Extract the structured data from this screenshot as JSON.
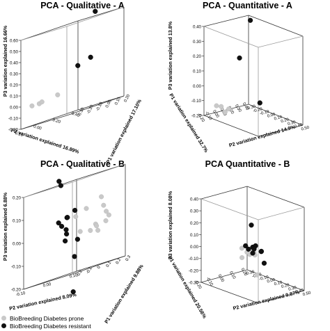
{
  "chart_data": [
    {
      "type": "scatter",
      "title": "PCA - Qualitative - A",
      "xlabel": "P2 variation explained 16.89%",
      "ylabel": "P1 variation explained 17.10%",
      "zlabel": "P3 variation explained 16.66%",
      "xticks": [
        "0.40",
        "0.20",
        "0.00",
        "-0.20"
      ],
      "yticks": [
        "-0.30",
        "-0.20",
        "-0.10",
        "0.00",
        "0.10",
        "0.20"
      ],
      "zticks": [
        "0.60",
        "0.50",
        "0.40",
        "0.30",
        "0.20",
        "0.10",
        "0.00",
        "-0.10",
        "-0.20"
      ],
      "series": [
        {
          "name": "BioBreeding Diabetes prone",
          "points": [
            [
              -0.18,
              -0.2,
              -0.02
            ],
            [
              -0.2,
              -0.1,
              -0.02
            ],
            [
              -0.22,
              -0.05,
              -0.01
            ],
            [
              -0.2,
              0.1,
              0.01
            ]
          ]
        },
        {
          "name": "BioBreeding Diabetes resistant",
          "points": [
            [
              0.05,
              0.25,
              0.65
            ],
            [
              0.35,
              -0.25,
              0.2
            ],
            [
              0.05,
              0.2,
              0.25
            ]
          ]
        }
      ]
    },
    {
      "type": "scatter",
      "title": "PCA - Quantitative - A",
      "xlabel": "P2 variation explained 14.9%",
      "ylabel": "P1 variation explained 32.7%",
      "zlabel": "P3 variation explained 13.8%",
      "xticks": [
        "-0.30",
        "-0.20",
        "-0.10",
        "0.00",
        "0.10",
        "0.20",
        "0.30",
        "0.40",
        "0.50"
      ],
      "yticks": [
        "0.40",
        "0.30",
        "0.20",
        "0.10",
        "0.00",
        "-0.10",
        "-0.20"
      ],
      "zticks": [
        "0.40",
        "0.30",
        "0.20",
        "0.10",
        "0.00",
        "-0.10",
        "-0.20"
      ],
      "series": [
        {
          "name": "BioBreeding Diabetes prone",
          "points": [
            [
              -0.28,
              -0.05,
              -0.15
            ],
            [
              -0.2,
              -0.06,
              -0.14
            ],
            [
              -0.1,
              -0.05,
              -0.14
            ],
            [
              -0.12,
              -0.08,
              -0.16
            ]
          ]
        },
        {
          "name": "BioBreeding Diabetes resistant",
          "points": [
            [
              0.0,
              0.15,
              0.45
            ],
            [
              -0.05,
              0.05,
              0.2
            ],
            [
              0.25,
              0.05,
              -0.05
            ]
          ]
        }
      ]
    },
    {
      "type": "scatter",
      "title": "PCA - Qualitative - B",
      "xlabel": "P2 variation explained 8.09%",
      "ylabel": "P1 variation explained 9.88%",
      "zlabel": "P3 variation explained 6.88%",
      "xticks": [
        "0.10",
        "0.00",
        "-0.10"
      ],
      "yticks": [
        "-0.2",
        "-0.1",
        "0",
        "0.1",
        "0.2",
        "0.3"
      ],
      "zticks": [
        "0.20",
        "0.10",
        "0.00",
        "-0.10",
        "-0.20"
      ],
      "series": [
        {
          "name": "BioBreeding Diabetes prone",
          "points": [
            [
              0.12,
              0.0,
              0.09
            ],
            [
              0.11,
              0.05,
              0.05
            ],
            [
              0.1,
              -0.1,
              0.06
            ],
            [
              0.12,
              0.05,
              0.02
            ],
            [
              0.13,
              0.05,
              0.0
            ],
            [
              0.1,
              0.1,
              -0.02
            ],
            [
              0.08,
              0.05,
              -0.02
            ],
            [
              0.12,
              -0.05,
              -0.03
            ],
            [
              0.06,
              0.05,
              -0.04
            ],
            [
              0.07,
              0.1,
              -0.05
            ],
            [
              0.04,
              0.0,
              -0.03
            ],
            [
              0.06,
              -0.1,
              0.04
            ]
          ]
        },
        {
          "name": "BioBreeding Diabetes resistant",
          "points": [
            [
              -0.04,
              0.0,
              0.22
            ],
            [
              -0.07,
              0.1,
              0.2
            ],
            [
              -0.01,
              0.0,
              0.05
            ],
            [
              0.01,
              -0.05,
              0.05
            ],
            [
              0.02,
              0.0,
              0.07
            ],
            [
              -0.03,
              0.0,
              0.02
            ],
            [
              -0.06,
              0.05,
              0.04
            ],
            [
              -0.05,
              0.1,
              0.0
            ],
            [
              -0.03,
              0.05,
              -0.02
            ],
            [
              0.02,
              -0.1,
              -0.05
            ],
            [
              0.03,
              0.0,
              -0.06
            ],
            [
              0.0,
              0.05,
              -0.13
            ],
            [
              -0.06,
              0.2,
              -0.28
            ]
          ]
        }
      ]
    },
    {
      "type": "scatter",
      "title": "PCA Quantitative - B",
      "xlabel": "P2 variation explained 9.87%",
      "ylabel": "P1 variation explained 20.56%",
      "zlabel": "P3 variation explained 8.08%",
      "xticks": [
        "-0.30",
        "-0.20",
        "-0.10",
        "0.00",
        "0.10",
        "0.20",
        "0.30",
        "0.40",
        "0.50"
      ],
      "yticks": [
        "0.20",
        "0.10",
        "0.00",
        "-0.10",
        "-0.20"
      ],
      "zticks": [
        "0.40",
        "0.30",
        "0.20",
        "0.10",
        "0.00",
        "-0.10",
        "-0.20",
        "-0.30"
      ],
      "series": [
        {
          "name": "BioBreeding Diabetes prone",
          "points": [
            [
              -0.02,
              -0.02,
              0.0
            ],
            [
              0.0,
              0.05,
              -0.02
            ],
            [
              0.02,
              0.0,
              -0.03
            ],
            [
              0.04,
              0.05,
              -0.04
            ],
            [
              0.06,
              0.0,
              -0.04
            ],
            [
              0.03,
              -0.05,
              -0.06
            ],
            [
              0.05,
              0.05,
              -0.06
            ],
            [
              0.08,
              0.05,
              -0.22
            ]
          ]
        },
        {
          "name": "BioBreeding Diabetes resistant",
          "points": [
            [
              0.0,
              0.05,
              0.18
            ],
            [
              0.08,
              -0.05,
              0.05
            ],
            [
              0.04,
              0.0,
              0.0
            ],
            [
              0.1,
              0.0,
              -0.02
            ],
            [
              0.1,
              0.0,
              0.03
            ],
            [
              0.14,
              0.0,
              0.05
            ],
            [
              0.2,
              -0.05,
              0.05
            ],
            [
              0.3,
              -0.05,
              0.05
            ],
            [
              0.18,
              0.05,
              -0.1
            ],
            [
              0.06,
              0.1,
              -0.04
            ]
          ]
        }
      ]
    }
  ],
  "legend": {
    "items": [
      {
        "label": "BioBreeding Diabetes prone",
        "color": "#c9c9c9"
      },
      {
        "label": "BioBreeding Diabetes resistant",
        "color": "#111111"
      }
    ]
  }
}
